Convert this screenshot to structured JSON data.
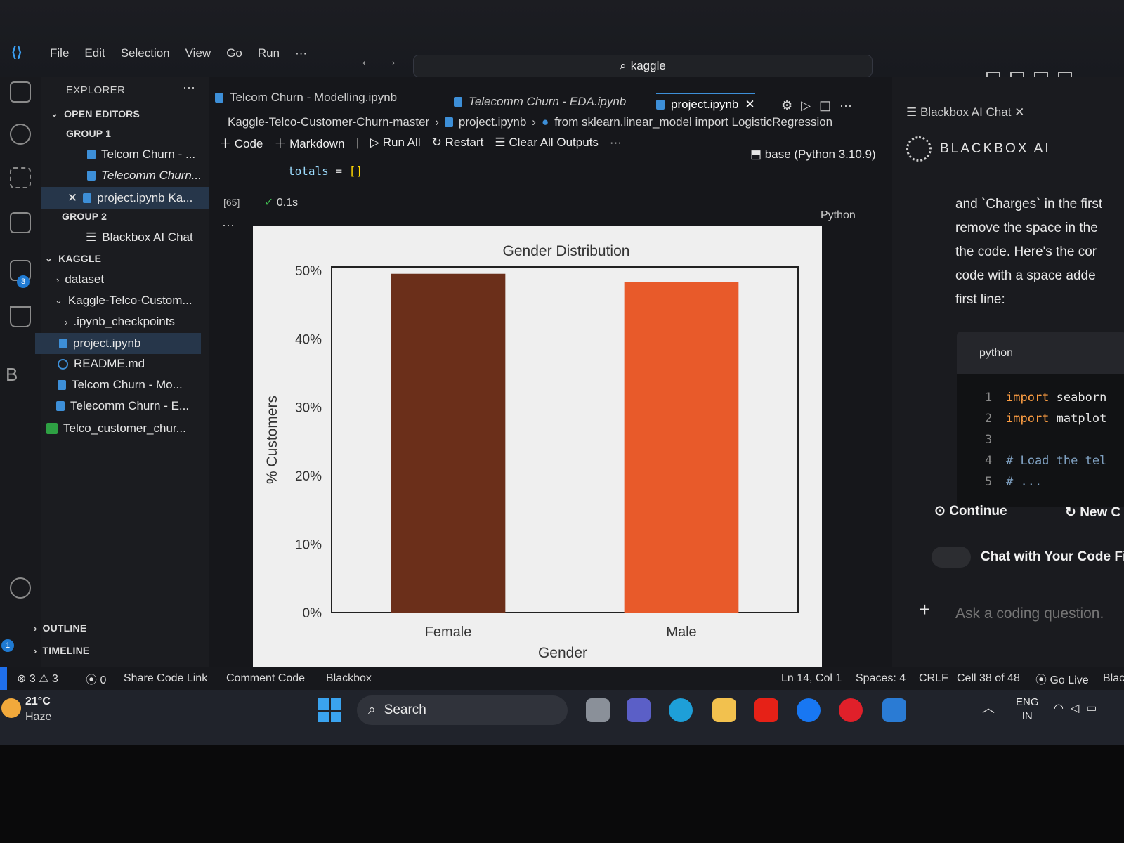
{
  "search": {
    "value": "kaggle"
  },
  "menu": [
    "File",
    "Edit",
    "Selection",
    "View",
    "Go",
    "Run",
    "···"
  ],
  "explorer": {
    "title": "EXPLORER",
    "open_editors": "OPEN EDITORS",
    "group1": "GROUP 1",
    "group1_items": [
      "Telcom Churn - ...",
      "Telecomm Churn...",
      "project.ipynb Ka..."
    ],
    "group2": "GROUP 2",
    "group2_items": [
      "Blackbox AI Chat"
    ],
    "kaggle": "KAGGLE",
    "kaggle_items": [
      "dataset",
      "Kaggle-Telco-Custom...",
      ".ipynb_checkpoints",
      "project.ipynb",
      "README.md",
      "Telcom Churn - Mo...",
      "Telecomm Churn - E...",
      "Telco_customer_chur..."
    ],
    "outline": "OUTLINE",
    "timeline": "TIMELINE"
  },
  "tabs": [
    {
      "label": "Telcom Churn - Modelling.ipynb"
    },
    {
      "label": "Telecomm Churn - EDA.ipynb"
    },
    {
      "label": "project.ipynb"
    }
  ],
  "breadcrumb": {
    "folder": "Kaggle-Telco-Customer-Churn-master",
    "file": "project.ipynb",
    "symbol": "from sklearn.linear_model import LogisticRegression"
  },
  "toolbar": {
    "code": "Code",
    "markdown": "Markdown",
    "run_all": "Run All",
    "restart": "Restart",
    "clear_all": "Clear All Outputs",
    "more": "···"
  },
  "kernel": "base (Python 3.10.9)",
  "cell": {
    "code_var": "totals",
    "code_op": " = ",
    "code_val": "[]",
    "exec_count": "[65]",
    "time": "0.1s",
    "lang": "Python"
  },
  "chart_data": {
    "type": "bar",
    "title": "Gender Distribution",
    "xlabel": "Gender",
    "ylabel": "% Customers",
    "categories": [
      "Female",
      "Male"
    ],
    "values": [
      49.5,
      48.3
    ],
    "yticks": [
      "0%",
      "10%",
      "20%",
      "30%",
      "40%",
      "50%"
    ],
    "ylim": [
      0,
      50.5
    ],
    "colors": [
      "#6b2f1a",
      "#e85a2a"
    ],
    "grid": false
  },
  "blackbox": {
    "panel_tab": "Blackbox AI Chat",
    "brand": "BLACKBOX AI",
    "message_lines": [
      "and `Charges` in the first",
      "remove the space in the",
      "the code. Here's the cor",
      "code with a space adde",
      "first line:"
    ],
    "code_header": "python",
    "code_lines": [
      {
        "n": "1",
        "kw": "import",
        "rest": " seaborn"
      },
      {
        "n": "2",
        "kw": "import",
        "rest": " matplot"
      },
      {
        "n": "3",
        "kw": "",
        "rest": ""
      },
      {
        "n": "4",
        "kw": "",
        "rest": "# Load the tel"
      },
      {
        "n": "5",
        "kw": "",
        "rest": "# ..."
      }
    ],
    "continue": "Continue",
    "new_chat": "New C",
    "toggle_label": "Chat with Your Code Fi",
    "ask_placeholder": "Ask a coding question."
  },
  "status": {
    "errors": "3",
    "warnings": "3",
    "ports": "0",
    "share": "Share Code Link",
    "comment": "Comment Code",
    "blackbox": "Blackbox",
    "position": "Ln 14, Col 1",
    "spaces": "Spaces: 4",
    "eol": "CRLF",
    "cell": "Cell 38 of 48",
    "golive": "Go Live",
    "blac": "Blac"
  },
  "taskbar": {
    "temp": "21°C",
    "weather": "Haze",
    "search": "Search",
    "lang1": "ENG",
    "lang2": "IN"
  }
}
